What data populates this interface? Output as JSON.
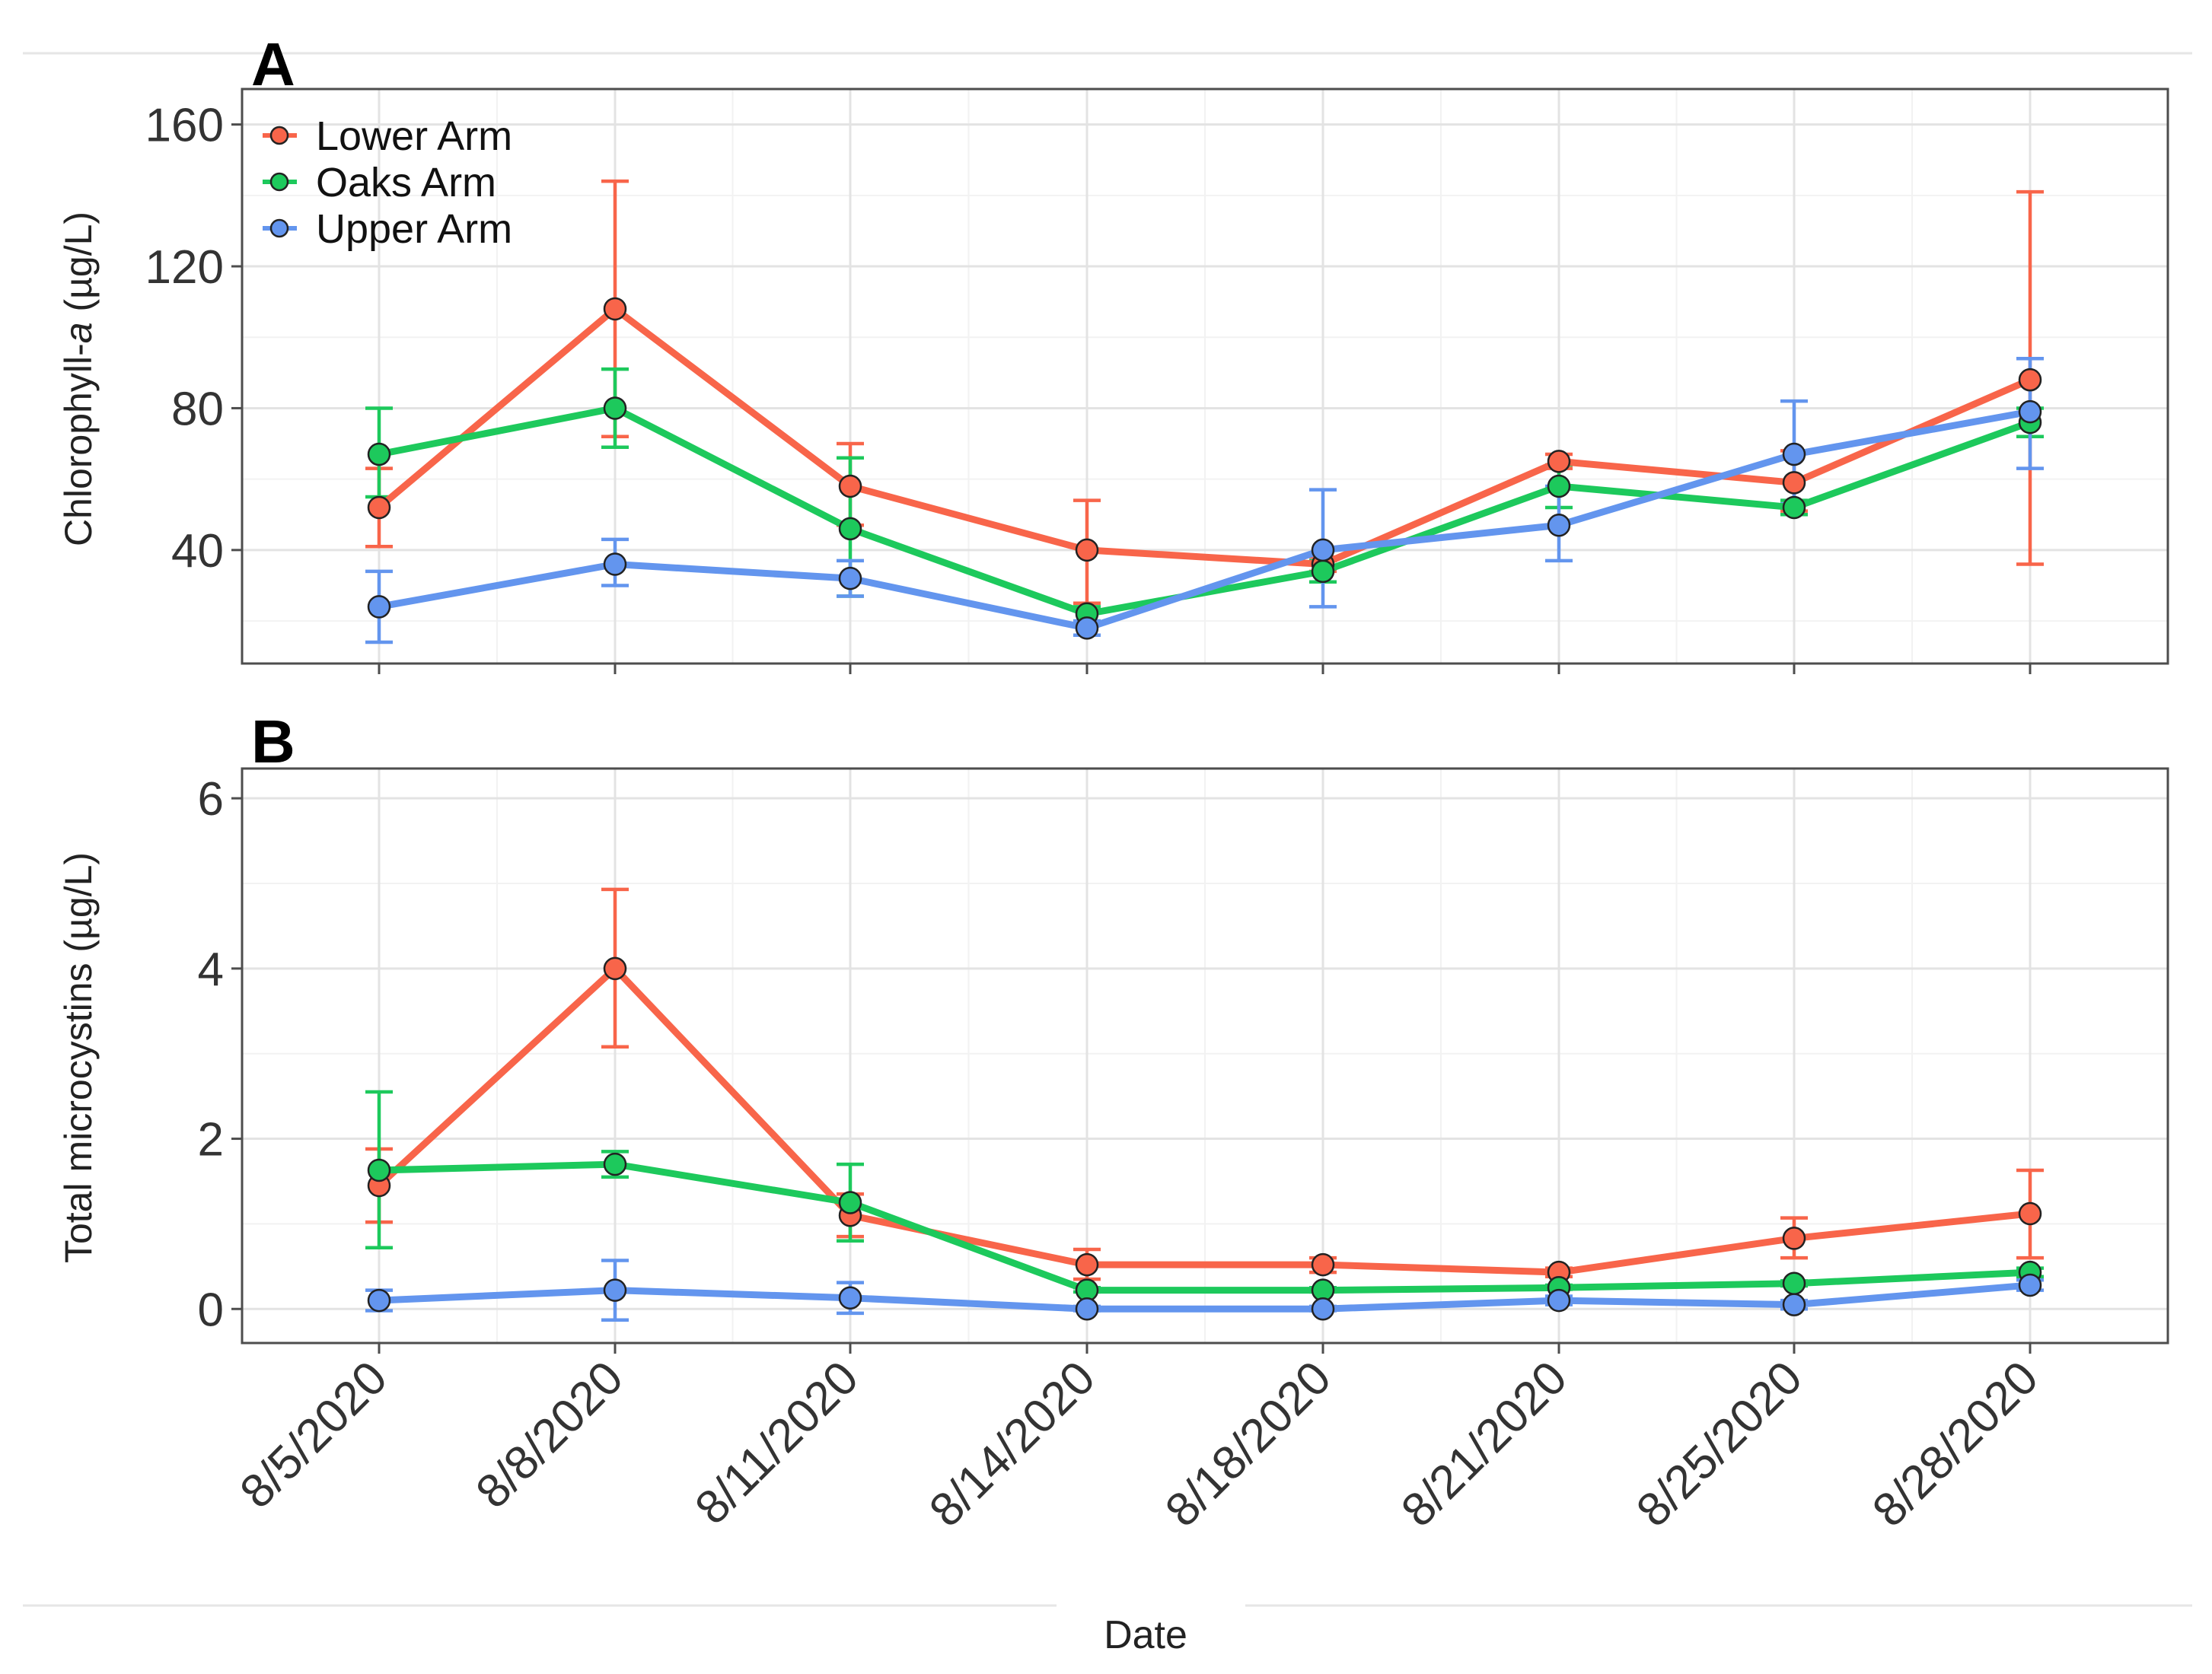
{
  "figure": {
    "shared_xlabel": "Date",
    "colors": {
      "lower": "#F8654A",
      "oaks": "#1DC95C",
      "upper": "#6395EE"
    },
    "legend": [
      {
        "key": "lower",
        "label": "Lower Arm"
      },
      {
        "key": "oaks",
        "label": "Oaks Arm"
      },
      {
        "key": "upper",
        "label": "Upper Arm"
      }
    ]
  },
  "chart_data": [
    {
      "panel": "A",
      "type": "line",
      "title": "",
      "xlabel": "Date",
      "ylabel_prefix": "Chlorophyll-",
      "ylabel_italic": "a",
      "ylabel_suffix": " (µg/L)",
      "categories": [
        "8/5/2020",
        "8/8/2020",
        "8/11/2020",
        "8/14/2020",
        "8/18/2020",
        "8/21/2020",
        "8/25/2020",
        "8/28/2020"
      ],
      "ylim": [
        8,
        170
      ],
      "yticks": [
        40,
        80,
        120,
        160
      ],
      "yticklabels": [
        "40",
        "80",
        "120",
        "160"
      ],
      "legend_position": "top-left",
      "series": [
        {
          "key": "lower",
          "name": "Lower Arm",
          "values": [
            52,
            108,
            58,
            40,
            36,
            65,
            59,
            88
          ],
          "err_low": [
            41,
            72,
            47,
            25,
            34,
            63,
            51,
            36
          ],
          "err_high": [
            63,
            144,
            70,
            54,
            38,
            67,
            68,
            141
          ]
        },
        {
          "key": "oaks",
          "name": "Oaks Arm",
          "values": [
            67,
            80,
            46,
            22,
            34,
            58,
            52,
            76
          ],
          "err_low": [
            55,
            69,
            27,
            20,
            31,
            52,
            50,
            72
          ],
          "err_high": [
            80,
            91,
            66,
            24,
            37,
            64,
            54,
            80
          ]
        },
        {
          "key": "upper",
          "name": "Upper Arm",
          "values": [
            24,
            36,
            32,
            18,
            40,
            47,
            67,
            79
          ],
          "err_low": [
            14,
            30,
            27,
            16,
            24,
            37,
            53,
            63
          ],
          "err_high": [
            34,
            43,
            37,
            20,
            57,
            58,
            82,
            94
          ]
        }
      ]
    },
    {
      "panel": "B",
      "type": "line",
      "title": "",
      "xlabel": "Date",
      "ylabel": "Total microcystins (µg/L)",
      "categories": [
        "8/5/2020",
        "8/8/2020",
        "8/11/2020",
        "8/14/2020",
        "8/18/2020",
        "8/21/2020",
        "8/25/2020",
        "8/28/2020"
      ],
      "ylim": [
        -0.4,
        6.35
      ],
      "yticks": [
        0,
        2,
        4,
        6
      ],
      "yticklabels": [
        "0",
        "2",
        "4",
        "6"
      ],
      "series": [
        {
          "key": "lower",
          "name": "Lower Arm",
          "values": [
            1.45,
            4.0,
            1.1,
            0.52,
            0.52,
            0.43,
            0.83,
            1.12
          ],
          "err_low": [
            1.02,
            3.08,
            0.85,
            0.35,
            0.43,
            0.38,
            0.6,
            0.6
          ],
          "err_high": [
            1.88,
            4.93,
            1.35,
            0.7,
            0.6,
            0.48,
            1.07,
            1.63
          ]
        },
        {
          "key": "oaks",
          "name": "Oaks Arm",
          "values": [
            1.63,
            1.7,
            1.25,
            0.22,
            0.22,
            0.25,
            0.3,
            0.43
          ],
          "err_low": [
            0.72,
            1.55,
            0.8,
            0.2,
            0.2,
            0.23,
            0.27,
            0.38
          ],
          "err_high": [
            2.55,
            1.85,
            1.7,
            0.25,
            0.25,
            0.28,
            0.33,
            0.48
          ]
        },
        {
          "key": "upper",
          "name": "Upper Arm",
          "values": [
            0.1,
            0.22,
            0.13,
            0.0,
            0.0,
            0.1,
            0.05,
            0.28
          ],
          "err_low": [
            -0.02,
            -0.13,
            -0.05,
            -0.02,
            -0.02,
            0.05,
            0.0,
            0.22
          ],
          "err_high": [
            0.22,
            0.57,
            0.31,
            0.03,
            0.03,
            0.15,
            0.1,
            0.34
          ]
        }
      ]
    }
  ]
}
